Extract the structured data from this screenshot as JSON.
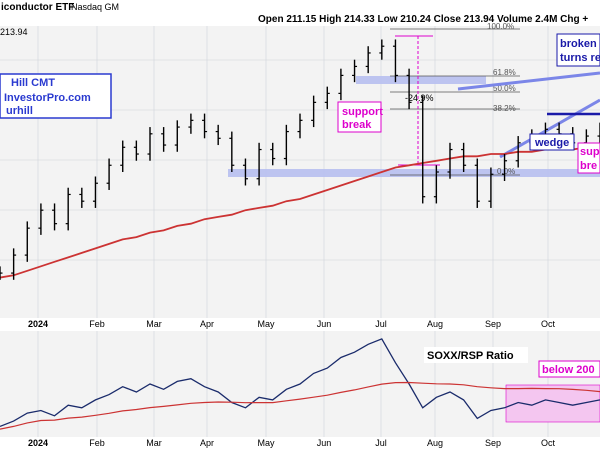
{
  "header": {
    "title": "iconductor ETF",
    "exchange": "Nasdaq GM",
    "ohlc": "Open 211.15   High 214.33   Low 210.24   Close 213.94   Volume 2.4M   Chg +"
  },
  "watermark": {
    "lines": [
      "Hill CMT",
      "InvestorPro.com",
      "urhill"
    ]
  },
  "price_panel": {
    "last_price_label": "213.94",
    "background": "#f3f3f3",
    "gridline_color": "#cfd3da",
    "bar_color": "#000000",
    "ma_color": "#cc3333",
    "zone_color": "#b7bff0",
    "wedge_line_color": "#7b86e8",
    "support_line_color": "#1a1aa8",
    "magenta": "#dd00cc"
  },
  "annotations": {
    "pct_drop": "-24.9%",
    "fib_top": "100.0%",
    "fib_618": "61.8%",
    "fib_500": "50.0%",
    "fib_382": "38.2%",
    "fib_000": "0.0%",
    "support_break_1": "support\nbreak",
    "wedge": "wedge",
    "broken_turns": "broken\nturns re",
    "support_break_2": "sup\nbre"
  },
  "ratio_panel": {
    "label": "SOXX/RSP Ratio",
    "below_label": "below 200",
    "line_color": "#1a2b6b",
    "ma_color": "#cc3333",
    "highlight_color": "#f4c6f0"
  },
  "x_axis": {
    "labels": [
      "2024",
      "Feb",
      "Mar",
      "Apr",
      "May",
      "Jun",
      "Jul",
      "Aug",
      "Sep",
      "Oct"
    ]
  },
  "chart_data": {
    "type": "line",
    "series": [
      {
        "values": [
          150,
          158,
          170,
          178,
          172,
          185,
          182,
          190,
          198,
          206,
          203,
          212,
          207,
          215,
          218,
          213,
          210,
          198,
          192,
          205,
          201,
          213,
          218,
          226,
          230,
          238,
          242,
          248,
          251,
          238,
          226,
          184,
          195,
          205,
          198,
          182,
          194,
          200,
          208,
          211,
          214,
          212,
          208,
          211,
          214
        ]
      },
      {
        "values": [
          148,
          149,
          151,
          153,
          155,
          157,
          159,
          161,
          163,
          165,
          166,
          168,
          169,
          171,
          172,
          174,
          175,
          176,
          178,
          179,
          180,
          182,
          183,
          185,
          187,
          189,
          191,
          193,
          195,
          197,
          198,
          199,
          200,
          201,
          202,
          202,
          203,
          203,
          204,
          204,
          205,
          205,
          205,
          206,
          206
        ]
      }
    ],
    "ratio_series": {
      "name": "SOXX/RSP Ratio",
      "values": [
        1.0,
        1.02,
        1.05,
        1.06,
        1.04,
        1.08,
        1.07,
        1.1,
        1.12,
        1.15,
        1.13,
        1.16,
        1.14,
        1.17,
        1.18,
        1.15,
        1.13,
        1.09,
        1.07,
        1.11,
        1.1,
        1.14,
        1.16,
        1.2,
        1.22,
        1.26,
        1.28,
        1.31,
        1.33,
        1.24,
        1.16,
        1.07,
        1.11,
        1.13,
        1.1,
        1.03,
        1.06,
        1.07,
        1.09,
        1.08,
        1.1,
        1.09,
        1.08,
        1.09,
        1.1
      ]
    }
  }
}
